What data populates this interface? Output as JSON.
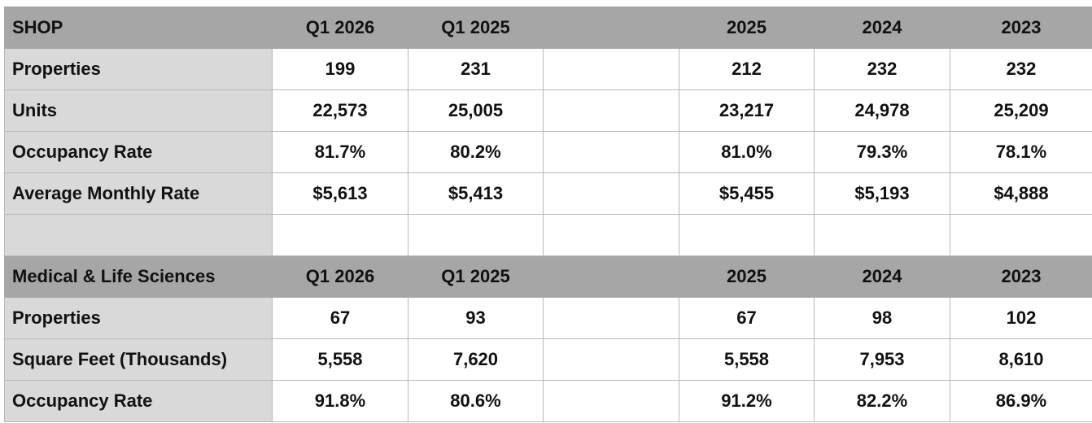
{
  "sections": [
    {
      "title": "SHOP",
      "periods": [
        "Q1 2026",
        "Q1 2025",
        "",
        "2025",
        "2024",
        "2023"
      ],
      "rows": [
        {
          "label": "Properties",
          "values": [
            "199",
            "231",
            "",
            "212",
            "232",
            "232"
          ]
        },
        {
          "label": "Units",
          "values": [
            "22,573",
            "25,005",
            "",
            "23,217",
            "24,978",
            "25,209"
          ]
        },
        {
          "label": "Occupancy Rate",
          "values": [
            "81.7%",
            "80.2%",
            "",
            "81.0%",
            "79.3%",
            "78.1%"
          ]
        },
        {
          "label": "Average Monthly Rate",
          "values": [
            "$5,613",
            "$5,413",
            "",
            "$5,455",
            "$5,193",
            "$4,888"
          ]
        }
      ]
    },
    {
      "title": "Medical & Life Sciences",
      "periods": [
        "Q1 2026",
        "Q1 2025",
        "",
        "2025",
        "2024",
        "2023"
      ],
      "rows": [
        {
          "label": "Properties",
          "values": [
            "67",
            "93",
            "",
            "67",
            "98",
            "102"
          ]
        },
        {
          "label": "Square Feet (Thousands)",
          "values": [
            "5,558",
            "7,620",
            "",
            "5,558",
            "7,953",
            "8,610"
          ]
        },
        {
          "label": "Occupancy Rate",
          "values": [
            "91.8%",
            "80.6%",
            "",
            "91.2%",
            "82.2%",
            "86.9%"
          ]
        }
      ]
    }
  ],
  "colors": {
    "header_fill": "#a6a6a6",
    "label_fill": "#d9d9d9",
    "grid_line": "#b9b9b9",
    "text": "#111111"
  }
}
